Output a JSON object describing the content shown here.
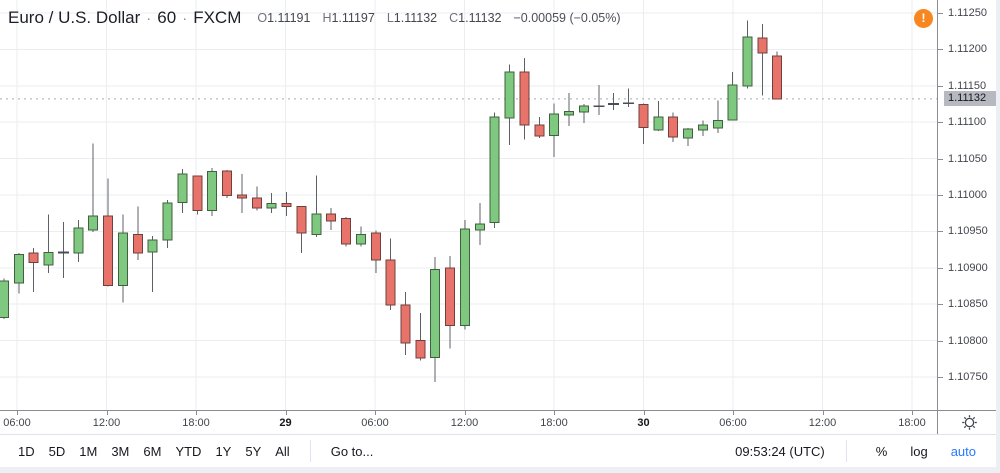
{
  "header": {
    "symbol_title": "Euro / U.S. Dollar",
    "sep": "·",
    "interval": "60",
    "exchange": "FXCM",
    "ohlc": [
      {
        "label": "O",
        "value": "1.11191"
      },
      {
        "label": "H",
        "value": "1.11197"
      },
      {
        "label": "L",
        "value": "1.11132"
      },
      {
        "label": "C",
        "value": "1.11132"
      }
    ],
    "change": "−0.00059 (−0.05%)"
  },
  "alert_icon": {
    "glyph": "!",
    "color": "#f7871e"
  },
  "price_axis": {
    "last_price_label": "1.11132"
  },
  "toolbar": {
    "ranges": [
      "1D",
      "5D",
      "1M",
      "3M",
      "6M",
      "YTD",
      "1Y",
      "5Y",
      "All"
    ],
    "goto_label": "Go to...",
    "clock": "09:53:24 (UTC)",
    "percent_label": "%",
    "log_label": "log",
    "auto_label": "auto",
    "auto_color": "#2979ff"
  },
  "colors": {
    "up_fill": "#7ec87f",
    "up_border": "#41603f",
    "down_fill": "#e8736b",
    "down_border": "#6f413c",
    "wick": "#5d6067",
    "doji": "#4a4d55",
    "grid": "#ebedf1",
    "axis_line": "#8a8d94",
    "dashed_line": "#a7aab2",
    "last_price_bg": "#b6b9c0",
    "accent_blue": "#2979ff",
    "alert_orange": "#f7871e"
  },
  "chart_data": {
    "type": "candlestick",
    "title": "Euro / U.S. Dollar, 60, FXCM",
    "last_price": 1.11132,
    "ylim": [
      1.10705,
      1.11268
    ],
    "price_ticks": [
      "1.11250",
      "1.11200",
      "1.11150",
      "1.11100",
      "1.11050",
      "1.11000",
      "1.10950",
      "1.10900",
      "1.10850",
      "1.10800",
      "1.10750"
    ],
    "time_labels": [
      {
        "text": "06:00",
        "bold": false
      },
      {
        "text": "12:00",
        "bold": false
      },
      {
        "text": "18:00",
        "bold": false
      },
      {
        "text": "29",
        "bold": true
      },
      {
        "text": "06:00",
        "bold": false
      },
      {
        "text": "12:00",
        "bold": false
      },
      {
        "text": "18:00",
        "bold": false
      },
      {
        "text": "30",
        "bold": true
      },
      {
        "text": "06:00",
        "bold": false
      },
      {
        "text": "12:00",
        "bold": false
      },
      {
        "text": "18:00",
        "bold": false
      }
    ],
    "candles_format": [
      "open",
      "high",
      "low",
      "close"
    ],
    "candles": [
      [
        1.10832,
        1.10885,
        1.1083,
        1.10882
      ],
      [
        1.10879,
        1.1092,
        1.10865,
        1.10918
      ],
      [
        1.1092,
        1.10927,
        1.10867,
        1.10907
      ],
      [
        1.10904,
        1.10973,
        1.10893,
        1.10921
      ],
      [
        1.10921,
        1.10963,
        1.10886,
        1.10921
      ],
      [
        1.1092,
        1.10966,
        1.10908,
        1.10955
      ],
      [
        1.10952,
        1.11071,
        1.10949,
        1.10971
      ],
      [
        1.10971,
        1.11023,
        1.10874,
        1.10876
      ],
      [
        1.10876,
        1.10973,
        1.10852,
        1.10948
      ],
      [
        1.10946,
        1.10984,
        1.10911,
        1.1092
      ],
      [
        1.10922,
        1.10944,
        1.10867,
        1.10938
      ],
      [
        1.10938,
        1.10993,
        1.10927,
        1.10989
      ],
      [
        1.1099,
        1.11036,
        1.10975,
        1.11029
      ],
      [
        1.11026,
        1.11027,
        1.10973,
        1.10979
      ],
      [
        1.10979,
        1.11037,
        1.10971,
        1.11032
      ],
      [
        1.11033,
        1.11034,
        1.10996,
        1.10999
      ],
      [
        1.11,
        1.11029,
        1.10975,
        1.10996
      ],
      [
        1.10996,
        1.11012,
        1.10979,
        1.10982
      ],
      [
        1.10982,
        1.11003,
        1.10975,
        1.10988
      ],
      [
        1.10988,
        1.11004,
        1.10971,
        1.10984
      ],
      [
        1.10984,
        1.10985,
        1.1092,
        1.10948
      ],
      [
        1.10946,
        1.11027,
        1.10942,
        1.10974
      ],
      [
        1.10974,
        1.10982,
        1.10952,
        1.10964
      ],
      [
        1.10968,
        1.1097,
        1.10929,
        1.10933
      ],
      [
        1.10933,
        1.10957,
        1.10929,
        1.10946
      ],
      [
        1.10948,
        1.10951,
        1.10893,
        1.10911
      ],
      [
        1.10911,
        1.1094,
        1.10842,
        1.10849
      ],
      [
        1.10849,
        1.10867,
        1.1078,
        1.10797
      ],
      [
        1.108,
        1.10838,
        1.10773,
        1.10776
      ],
      [
        1.10777,
        1.10915,
        1.10743,
        1.10898
      ],
      [
        1.109,
        1.10916,
        1.10789,
        1.10821
      ],
      [
        1.10821,
        1.10966,
        1.10815,
        1.10953
      ],
      [
        1.10952,
        1.10989,
        1.10931,
        1.1096
      ],
      [
        1.10962,
        1.11113,
        1.10955,
        1.11107
      ],
      [
        1.11106,
        1.11179,
        1.11069,
        1.11169
      ],
      [
        1.11169,
        1.11188,
        1.11076,
        1.11096
      ],
      [
        1.11096,
        1.11107,
        1.11078,
        1.11081
      ],
      [
        1.11082,
        1.11126,
        1.11052,
        1.11111
      ],
      [
        1.1111,
        1.1114,
        1.11095,
        1.11115
      ],
      [
        1.11114,
        1.11125,
        1.11099,
        1.11122
      ],
      [
        1.11122,
        1.11151,
        1.1111,
        1.11122
      ],
      [
        1.11125,
        1.1114,
        1.11117,
        1.11125
      ],
      [
        1.11126,
        1.11146,
        1.11121,
        1.11126
      ],
      [
        1.11124,
        1.11126,
        1.1107,
        1.11093
      ],
      [
        1.11089,
        1.11129,
        1.11088,
        1.11107
      ],
      [
        1.11107,
        1.11113,
        1.11073,
        1.1108
      ],
      [
        1.11078,
        1.11092,
        1.11067,
        1.11091
      ],
      [
        1.11089,
        1.11102,
        1.11081,
        1.11096
      ],
      [
        1.11092,
        1.1113,
        1.11085,
        1.11102
      ],
      [
        1.11103,
        1.11169,
        1.11102,
        1.11151
      ],
      [
        1.1115,
        1.1124,
        1.11146,
        1.11217
      ],
      [
        1.11216,
        1.11235,
        1.11137,
        1.11195
      ],
      [
        1.11191,
        1.11197,
        1.11132,
        1.11132
      ]
    ]
  }
}
